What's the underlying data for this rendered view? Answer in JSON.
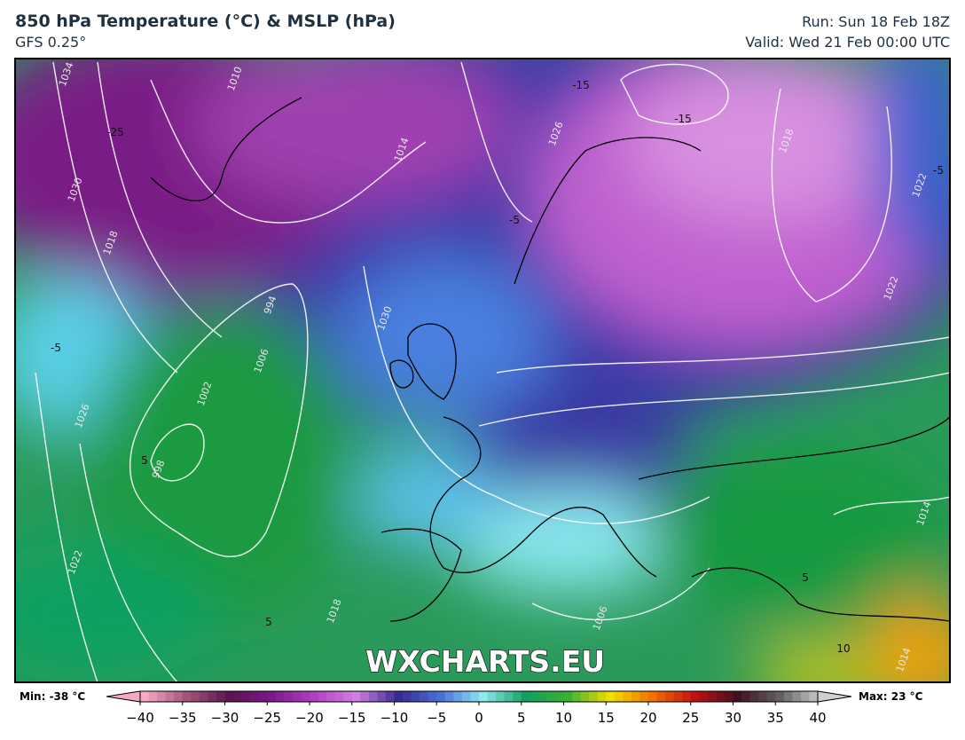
{
  "header": {
    "title": "850 hPa Temperature (°C) & MSLP (hPa)",
    "model": "GFS 0.25°",
    "run": "Run: Sun 18 Feb 18Z",
    "valid": "Valid: Wed 21 Feb 00:00 UTC"
  },
  "map": {
    "watermark": "WXCHARTS.EU",
    "isobar_labels": [
      "1034",
      "1030",
      "1026",
      "1022",
      "1018",
      "1014",
      "1010",
      "1006",
      "1002",
      "998",
      "994",
      "1026",
      "1022",
      "1018",
      "1014",
      "1030",
      "1006",
      "1014",
      "1022",
      "1018"
    ],
    "temperature_labels": [
      "-15",
      "-15",
      "-5",
      "-5",
      "5",
      "5",
      "5",
      "10",
      "-25",
      "-5"
    ]
  },
  "colorbar": {
    "min_label": "Min: -38 °C",
    "max_label": "Max: 23 °C",
    "ticks": [
      {
        "value": -40,
        "label": "−40"
      },
      {
        "value": -35,
        "label": "−35"
      },
      {
        "value": -30,
        "label": "−30"
      },
      {
        "value": -25,
        "label": "−25"
      },
      {
        "value": -20,
        "label": "−20"
      },
      {
        "value": -15,
        "label": "−15"
      },
      {
        "value": -10,
        "label": "−10"
      },
      {
        "value": -5,
        "label": "−5"
      },
      0,
      5,
      10,
      15,
      20,
      25,
      30,
      35,
      40
    ],
    "colors": [
      "#f7a8c4",
      "#a0567a",
      "#5a1450",
      "#7a1a8a",
      "#b040c0",
      "#d080e0",
      "#3a2a90",
      "#4a70d8",
      "#90e8f0",
      "#10a060",
      "#3ab030",
      "#f0e000",
      "#f07000",
      "#c01010",
      "#401020",
      "#606060",
      "#d0d0d0"
    ]
  }
}
